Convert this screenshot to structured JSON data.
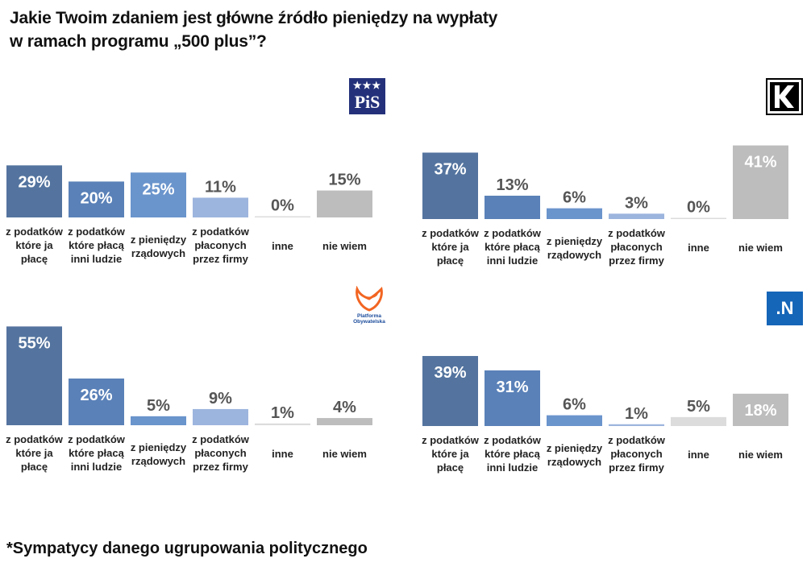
{
  "title_line1": "Jakie Twoim zdaniem jest główne źródło pieniędzy na wypłaty",
  "title_line2": "w ramach programu „500 plus”?",
  "footnote": "*Sympatycy danego ugrupowania politycznego",
  "logos": {
    "pis": {
      "text": "PiS",
      "stars": "★★★",
      "color": "#24317a"
    },
    "kukiz": {
      "text": "K"
    },
    "po": {
      "text_line1": "Platforma",
      "text_line2": "Obywatelska",
      "color": "#f26522"
    },
    "nowoczesna": {
      "text": ".N",
      "color": "#1565b8"
    }
  },
  "colors": [
    "#54749f",
    "#5a81b8",
    "#6a94cc",
    "#9cb5de",
    "#dcdcdc",
    "#bdbdbd"
  ],
  "chart_data": [
    {
      "type": "bar",
      "group": "PiS",
      "categories": [
        [
          "z podatków",
          "które ja",
          "płacę"
        ],
        [
          "z podatków",
          "które płacą",
          "inni ludzie"
        ],
        [
          "z pieniędzy",
          "rządowych"
        ],
        [
          "z podatków",
          "płaconych",
          "przez firmy"
        ],
        [
          "inne"
        ],
        [
          "nie wiem"
        ]
      ],
      "values": [
        29,
        20,
        25,
        11,
        0,
        15
      ],
      "labels": [
        "29%",
        "20%",
        "25%",
        "11%",
        "0%",
        "15%"
      ],
      "ylim": [
        0,
        55
      ]
    },
    {
      "type": "bar",
      "group": "Kukiz'15",
      "categories": [
        [
          "z podatków",
          "które ja",
          "płacę"
        ],
        [
          "z podatków",
          "które płacą",
          "inni ludzie"
        ],
        [
          "z pieniędzy",
          "rządowych"
        ],
        [
          "z podatków",
          "płaconych",
          "przez firmy"
        ],
        [
          "inne"
        ],
        [
          "nie wiem"
        ]
      ],
      "values": [
        37,
        13,
        6,
        3,
        0,
        41
      ],
      "labels": [
        "37%",
        "13%",
        "6%",
        "3%",
        "0%",
        "41%"
      ],
      "ylim": [
        0,
        55
      ]
    },
    {
      "type": "bar",
      "group": "Platforma Obywatelska",
      "categories": [
        [
          "z podatków",
          "które ja",
          "płacę"
        ],
        [
          "z podatków",
          "które płacą",
          "inni ludzie"
        ],
        [
          "z pieniędzy",
          "rządowych"
        ],
        [
          "z podatków",
          "płaconych",
          "przez firmy"
        ],
        [
          "inne"
        ],
        [
          "nie wiem"
        ]
      ],
      "values": [
        55,
        26,
        5,
        9,
        1,
        4
      ],
      "labels": [
        "55%",
        "26%",
        "5%",
        "9%",
        "1%",
        "4%"
      ],
      "ylim": [
        0,
        55
      ]
    },
    {
      "type": "bar",
      "group": "Nowoczesna",
      "categories": [
        [
          "z podatków",
          "które ja",
          "płacę"
        ],
        [
          "z podatków",
          "które płacą",
          "inni ludzie"
        ],
        [
          "z pieniędzy",
          "rządowych"
        ],
        [
          "z podatków",
          "płaconych",
          "przez firmy"
        ],
        [
          "inne"
        ],
        [
          "nie wiem"
        ]
      ],
      "values": [
        39,
        31,
        6,
        1,
        5,
        18
      ],
      "labels": [
        "39%",
        "31%",
        "6%",
        "1%",
        "5%",
        "18%"
      ],
      "ylim": [
        0,
        55
      ]
    }
  ]
}
